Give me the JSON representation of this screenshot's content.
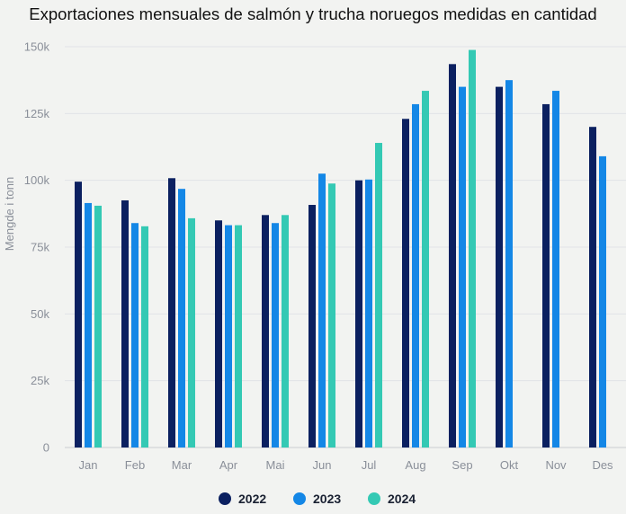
{
  "chart_data": {
    "type": "bar",
    "title": "Exportaciones mensuales de salmón y trucha noruegos medidas en cantidad",
    "xlabel": "",
    "ylabel": "Mengde i tonn",
    "ylim": [
      0,
      150000
    ],
    "yticks": [
      0,
      25000,
      50000,
      75000,
      100000,
      125000,
      150000
    ],
    "ytick_labels": [
      "0",
      "25k",
      "50k",
      "75k",
      "100k",
      "125k",
      "150k"
    ],
    "grid": true,
    "legend_position": "bottom",
    "categories": [
      "Jan",
      "Feb",
      "Mar",
      "Apr",
      "Mai",
      "Jun",
      "Jul",
      "Aug",
      "Sep",
      "Okt",
      "Nov",
      "Des"
    ],
    "series": [
      {
        "name": "2022",
        "color": "#0b2060",
        "values": [
          99500,
          92500,
          100800,
          85000,
          87000,
          90800,
          100000,
          123000,
          143500,
          135000,
          128500,
          120000
        ]
      },
      {
        "name": "2023",
        "color": "#1487e6",
        "values": [
          91500,
          84000,
          96800,
          83200,
          84000,
          102500,
          100300,
          128500,
          135000,
          137500,
          133500,
          109000
        ]
      },
      {
        "name": "2024",
        "color": "#34c9b4",
        "values": [
          90500,
          82800,
          85800,
          83200,
          87000,
          98800,
          114000,
          133500,
          148800,
          null,
          null,
          null
        ]
      }
    ]
  }
}
